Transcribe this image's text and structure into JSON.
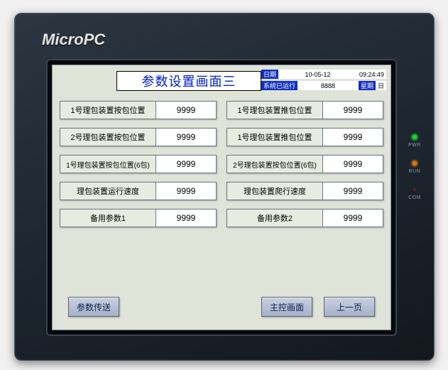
{
  "device": {
    "brand": "MicroPC"
  },
  "leds": {
    "pwr": "PWR",
    "run": "RUN",
    "com": "COM"
  },
  "header": {
    "title": "参数设置画面三",
    "date_tag": "日期",
    "date_value": "10-05-12",
    "time_value": "09:24:49",
    "status_tag": "系统已运行",
    "status_value": "8888",
    "week_tag": "星期",
    "week_value": "日"
  },
  "params": {
    "left": [
      {
        "label": "1号理包装置按包位置",
        "value": "9999"
      },
      {
        "label": "2号理包装置按包位置",
        "value": "9999"
      },
      {
        "label": "1号理包装置按包位置(6包)",
        "value": "9999"
      },
      {
        "label": "理包装置运行速度",
        "value": "9999"
      },
      {
        "label": "备用参数1",
        "value": "9999"
      }
    ],
    "right": [
      {
        "label": "1号理包装置推包位置",
        "value": "9999"
      },
      {
        "label": "1号理包装置推包位置",
        "value": "9999"
      },
      {
        "label": "2号理包装置按包位置(6包)",
        "value": "9999"
      },
      {
        "label": "理包装置爬行速度",
        "value": "9999"
      },
      {
        "label": "备用参数2",
        "value": "9999"
      }
    ]
  },
  "buttons": {
    "transfer": "参数传送",
    "main": "主控画面",
    "prev": "上一页"
  },
  "colors": {
    "screen_bg": "#dfe3d8",
    "title_text": "#0020c5",
    "tag_bg": "#1030c0",
    "btn_bg_top": "#c9d0df",
    "btn_bg_bot": "#a6b2c9",
    "device_dark": "#1b232c"
  }
}
